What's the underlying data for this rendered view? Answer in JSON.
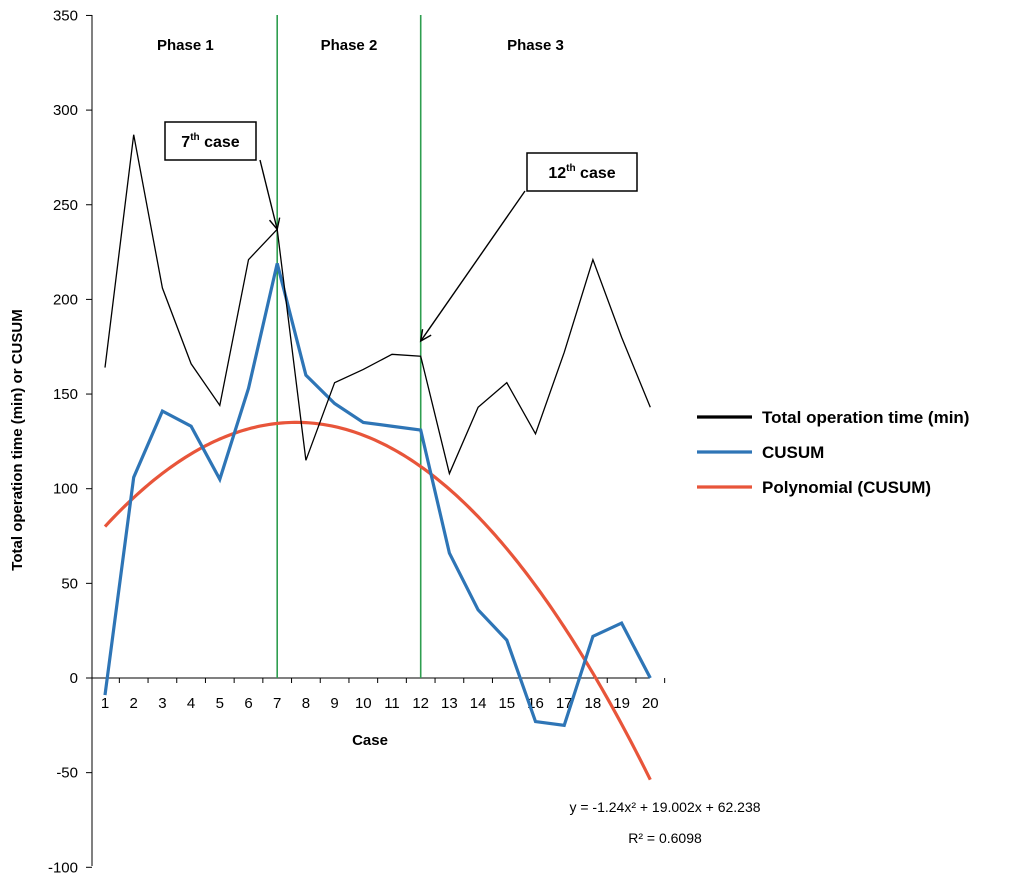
{
  "chart_data": {
    "type": "line",
    "x": [
      1,
      2,
      3,
      4,
      5,
      6,
      7,
      8,
      9,
      10,
      11,
      12,
      13,
      14,
      15,
      16,
      17,
      18,
      19,
      20
    ],
    "xlabel": "Case",
    "ylabel": "Total operation time (min) or CUSUM",
    "ylim": [
      -100,
      350
    ],
    "y_ticks": [
      "350",
      "300",
      "250",
      "200",
      "150",
      "100",
      "50",
      "0",
      "-50",
      "-100"
    ],
    "x_ticks": [
      "1",
      "2",
      "3",
      "4",
      "5",
      "6",
      "7",
      "8",
      "9",
      "10",
      "11",
      "12",
      "13",
      "14",
      "15",
      "16",
      "17",
      "18",
      "19",
      "20"
    ],
    "grid": false,
    "legend_position": "right",
    "series": [
      {
        "name": "Total operation time (min)",
        "color": "#000000",
        "values": [
          164,
          287,
          206,
          166,
          144,
          221,
          237,
          115,
          156,
          163,
          171,
          170,
          108,
          143,
          156,
          129,
          172,
          221,
          180,
          143
        ]
      },
      {
        "name": "CUSUM",
        "color": "#2e75b6",
        "values": [
          -9,
          106,
          141,
          133,
          105,
          153,
          219,
          160,
          145,
          135,
          133,
          131,
          66,
          36,
          20,
          -23,
          -25,
          22,
          29,
          0
        ]
      },
      {
        "name": "Polynomial (CUSUM)",
        "color": "#e8553a",
        "equation": {
          "a": -1.24,
          "b": 19.002,
          "c": 62.238
        }
      }
    ],
    "vertical_lines": [
      {
        "x": 7,
        "color": "#2e9e4f"
      },
      {
        "x": 12,
        "color": "#2e9e4f"
      }
    ],
    "phases": [
      {
        "label": "Phase 1",
        "x": 3.8
      },
      {
        "label": "Phase 2",
        "x": 9.5
      },
      {
        "label": "Phase 3",
        "x": 16
      }
    ],
    "annotations": [
      {
        "base": "7",
        "sup": "th",
        "text": " case",
        "target_x": 7,
        "target_y": 237
      },
      {
        "base": "12",
        "sup": "th",
        "text": " case",
        "target_x": 12,
        "target_y": 178
      }
    ],
    "trendline_label": {
      "equation": "y = -1.24x² + 19.002x + 62.238",
      "r2": "R² = 0.6098"
    }
  }
}
